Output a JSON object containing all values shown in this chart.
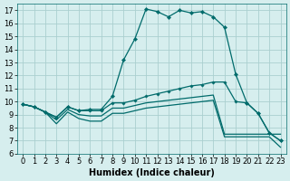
{
  "xlabel": "Humidex (Indice chaleur)",
  "bg_color": "#d6eeee",
  "grid_color": "#aacfcf",
  "line_color": "#006b6b",
  "xlim": [
    -0.5,
    23.5
  ],
  "ylim": [
    6,
    17.5
  ],
  "xticks": [
    0,
    1,
    2,
    3,
    4,
    5,
    6,
    7,
    8,
    9,
    10,
    11,
    12,
    13,
    14,
    15,
    16,
    17,
    18,
    19,
    20,
    21,
    22,
    23
  ],
  "yticks": [
    6,
    7,
    8,
    9,
    10,
    11,
    12,
    13,
    14,
    15,
    16,
    17
  ],
  "line1_y": [
    9.8,
    9.6,
    9.2,
    8.8,
    9.6,
    9.3,
    9.4,
    9.4,
    10.4,
    13.2,
    14.8,
    17.1,
    16.9,
    16.5,
    17.0,
    16.8,
    16.9,
    16.5,
    15.7,
    12.1,
    9.9,
    9.1,
    7.6,
    7.0
  ],
  "line2_y": [
    9.8,
    9.6,
    9.2,
    8.8,
    9.6,
    9.3,
    9.3,
    9.3,
    9.9,
    9.9,
    10.1,
    10.4,
    10.6,
    10.8,
    11.0,
    11.2,
    11.3,
    11.5,
    11.5,
    10.0,
    9.9,
    9.1,
    7.6,
    7.0
  ],
  "line3_y": [
    9.8,
    9.6,
    9.2,
    8.6,
    9.4,
    9.0,
    8.9,
    8.9,
    9.5,
    9.5,
    9.7,
    9.9,
    10.0,
    10.1,
    10.2,
    10.3,
    10.4,
    10.5,
    7.5,
    7.5,
    7.5,
    7.5,
    7.5,
    7.5
  ],
  "line4_y": [
    9.8,
    9.6,
    9.2,
    8.3,
    9.2,
    8.7,
    8.5,
    8.5,
    9.1,
    9.1,
    9.3,
    9.5,
    9.6,
    9.7,
    9.8,
    9.9,
    10.0,
    10.1,
    7.3,
    7.3,
    7.3,
    7.3,
    7.3,
    6.5
  ],
  "tick_fontsize": 6,
  "xlabel_fontsize": 7
}
